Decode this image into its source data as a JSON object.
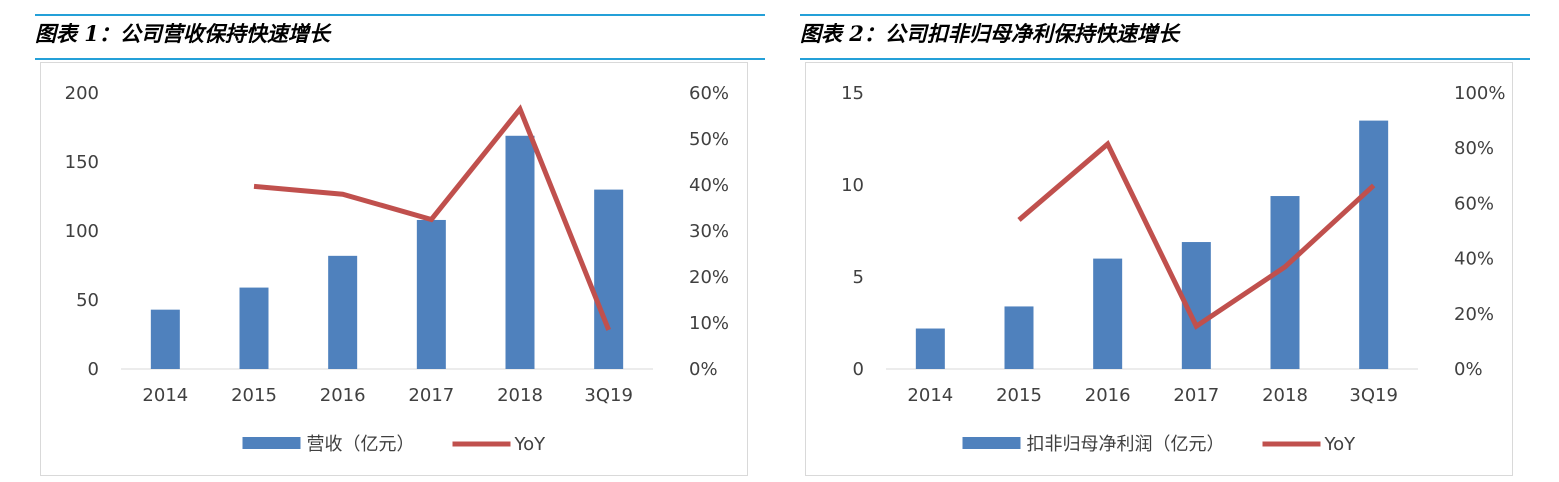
{
  "charts": [
    {
      "title": "图表 1：公司营收保持快速增长",
      "accent_color": "#24a0d8",
      "bar_color": "#4f81bd",
      "line_color": "#c0504d",
      "legend": {
        "bar": "营收（亿元）",
        "line": "YoY"
      }
    },
    {
      "title": "图表 2：公司扣非归母净利保持快速增长",
      "accent_color": "#24a0d8",
      "bar_color": "#4f81bd",
      "line_color": "#c0504d",
      "legend": {
        "bar": "扣非归母净利润（亿元）",
        "line": "YoY"
      }
    }
  ],
  "chart_data": [
    {
      "type": "bar",
      "title": "图表 1：公司营收保持快速增长",
      "categories": [
        "2014",
        "2015",
        "2016",
        "2017",
        "2018",
        "3Q19"
      ],
      "series": [
        {
          "name": "营收（亿元）",
          "type": "bar",
          "axis": "left",
          "values": [
            43,
            59,
            82,
            108,
            169,
            130
          ]
        },
        {
          "name": "YoY",
          "type": "line",
          "axis": "right",
          "values": [
            null,
            0.397,
            0.38,
            0.325,
            0.565,
            0.085
          ]
        }
      ],
      "ylim_left": [
        0,
        200
      ],
      "yticks_left": [
        0,
        50,
        100,
        150,
        200
      ],
      "ylim_right": [
        0,
        0.6
      ],
      "yticks_right": [
        "0%",
        "10%",
        "20%",
        "30%",
        "40%",
        "50%",
        "60%"
      ],
      "grid": false,
      "legend_position": "bottom"
    },
    {
      "type": "bar",
      "title": "图表 2：公司扣非归母净利保持快速增长",
      "categories": [
        "2014",
        "2015",
        "2016",
        "2017",
        "2018",
        "3Q19"
      ],
      "series": [
        {
          "name": "扣非归母净利润（亿元）",
          "type": "bar",
          "axis": "left",
          "values": [
            2.2,
            3.4,
            6.0,
            6.9,
            9.4,
            13.5
          ]
        },
        {
          "name": "YoY",
          "type": "line",
          "axis": "right",
          "values": [
            null,
            0.54,
            0.815,
            0.155,
            0.37,
            0.665
          ]
        }
      ],
      "ylim_left": [
        0,
        15
      ],
      "yticks_left": [
        0,
        5,
        10,
        15
      ],
      "ylim_right": [
        0,
        1.0
      ],
      "yticks_right": [
        "0%",
        "20%",
        "40%",
        "60%",
        "80%",
        "100%"
      ],
      "grid": false,
      "legend_position": "bottom"
    }
  ]
}
